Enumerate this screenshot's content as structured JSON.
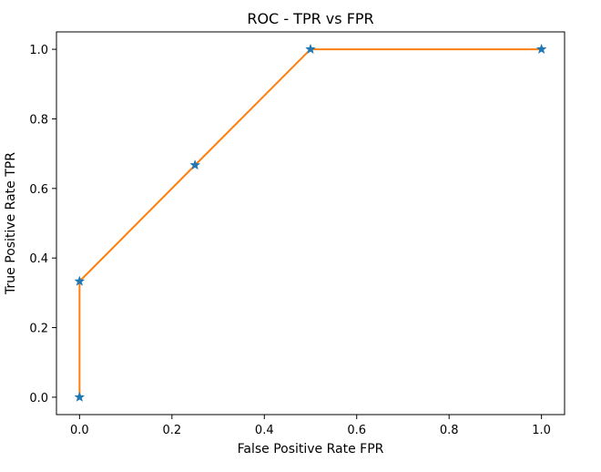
{
  "chart_data": {
    "type": "line",
    "title": "ROC - TPR vs FPR",
    "xlabel": "False Positive Rate FPR",
    "ylabel": "True Positive Rate TPR",
    "xlim": [
      -0.05,
      1.05
    ],
    "ylim": [
      -0.05,
      1.05
    ],
    "xticks": [
      0.0,
      0.2,
      0.4,
      0.6,
      0.8,
      1.0
    ],
    "yticks": [
      0.0,
      0.2,
      0.4,
      0.6,
      0.8,
      1.0
    ],
    "xtick_labels": [
      "0.0",
      "0.2",
      "0.4",
      "0.6",
      "0.8",
      "1.0"
    ],
    "ytick_labels": [
      "0.0",
      "0.2",
      "0.4",
      "0.6",
      "0.8",
      "1.0"
    ],
    "grid": false,
    "series": [
      {
        "x": [
          0.0,
          0.0,
          0.25,
          0.5,
          1.0
        ],
        "y": [
          0.0,
          0.333,
          0.667,
          1.0,
          1.0
        ],
        "line_color": "#ff7f0e",
        "marker_color": "#1f77b4",
        "marker": "star"
      }
    ]
  }
}
